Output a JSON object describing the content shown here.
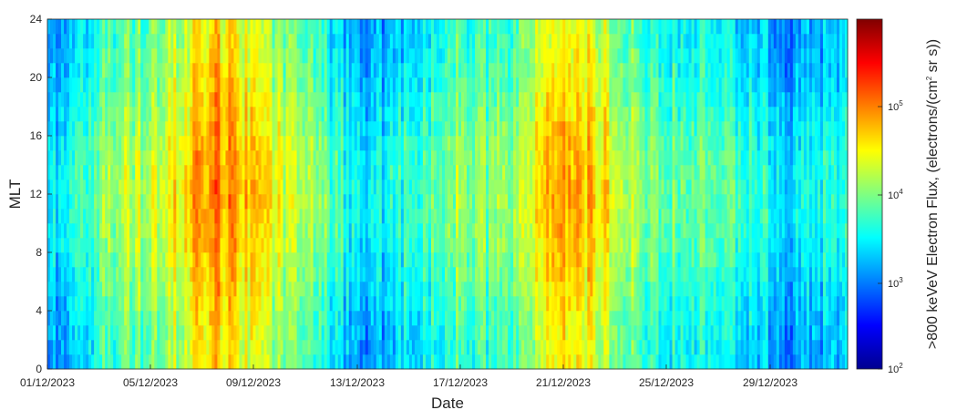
{
  "chart_data": {
    "type": "heatmap",
    "title": "",
    "xlabel": "Date",
    "ylabel": "MLT",
    "x_range": [
      "01/12/2023",
      "02/01/2024"
    ],
    "x_ticks": [
      "01/12/2023",
      "05/12/2023",
      "09/12/2023",
      "13/12/2023",
      "17/12/2023",
      "21/12/2023",
      "25/12/2023",
      "29/12/2023"
    ],
    "ylim": [
      0,
      24
    ],
    "y_ticks": [
      "0",
      "4",
      "8",
      "12",
      "16",
      "20",
      "24"
    ],
    "mlt_bin_width_hours": 1,
    "colorbar": {
      "label": ">800 keVeV Electron Flux, (electrons/(cm² sr s))",
      "label_text": ">800 keVeV Electron Flux, (electrons/(cm",
      "label_sup": "2",
      "label_tail": " sr s))",
      "scale": "log",
      "range": [
        100,
        800000
      ],
      "colormap": "jet",
      "ticks": [
        {
          "base": "10",
          "exp": "2",
          "value": 100
        },
        {
          "base": "10",
          "exp": "3",
          "value": 1000
        },
        {
          "base": "10",
          "exp": "4",
          "value": 10000
        },
        {
          "base": "10",
          "exp": "5",
          "value": 100000
        }
      ]
    },
    "daily_log10_flux_profile": [
      {
        "date": "01/12/2023",
        "log10_flux": 3.2
      },
      {
        "date": "02/12/2023",
        "log10_flux": 3.6
      },
      {
        "date": "03/12/2023",
        "log10_flux": 3.9
      },
      {
        "date": "04/12/2023",
        "log10_flux": 4.0
      },
      {
        "date": "05/12/2023",
        "log10_flux": 4.1
      },
      {
        "date": "06/12/2023",
        "log10_flux": 4.4
      },
      {
        "date": "07/12/2023",
        "log10_flux": 4.8
      },
      {
        "date": "08/12/2023",
        "log10_flux": 4.6
      },
      {
        "date": "09/12/2023",
        "log10_flux": 4.3
      },
      {
        "date": "10/12/2023",
        "log10_flux": 4.1
      },
      {
        "date": "11/12/2023",
        "log10_flux": 3.9
      },
      {
        "date": "12/12/2023",
        "log10_flux": 3.6
      },
      {
        "date": "13/12/2023",
        "log10_flux": 3.2
      },
      {
        "date": "14/12/2023",
        "log10_flux": 3.3
      },
      {
        "date": "15/12/2023",
        "log10_flux": 3.5
      },
      {
        "date": "16/12/2023",
        "log10_flux": 3.7
      },
      {
        "date": "17/12/2023",
        "log10_flux": 3.9
      },
      {
        "date": "18/12/2023",
        "log10_flux": 3.8
      },
      {
        "date": "19/12/2023",
        "log10_flux": 3.9
      },
      {
        "date": "20/12/2023",
        "log10_flux": 4.4
      },
      {
        "date": "21/12/2023",
        "log10_flux": 4.6
      },
      {
        "date": "22/12/2023",
        "log10_flux": 4.5
      },
      {
        "date": "23/12/2023",
        "log10_flux": 4.3
      },
      {
        "date": "24/12/2023",
        "log10_flux": 3.9
      },
      {
        "date": "25/12/2023",
        "log10_flux": 3.7
      },
      {
        "date": "26/12/2023",
        "log10_flux": 3.7
      },
      {
        "date": "27/12/2023",
        "log10_flux": 3.7
      },
      {
        "date": "28/12/2023",
        "log10_flux": 3.6
      },
      {
        "date": "29/12/2023",
        "log10_flux": 3.5
      },
      {
        "date": "30/12/2023",
        "log10_flux": 3.1
      },
      {
        "date": "31/12/2023",
        "log10_flux": 3.3
      },
      {
        "date": "01/01/2024",
        "log10_flux": 3.4
      }
    ]
  }
}
